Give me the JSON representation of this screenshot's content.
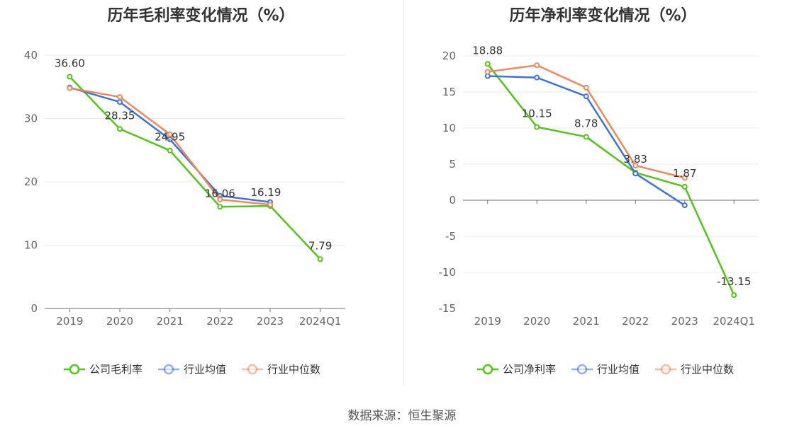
{
  "source": "数据来源：恒生聚源",
  "chart_data": [
    {
      "type": "line",
      "title": "历年毛利率变化情况（%）",
      "categories": [
        "2019",
        "2020",
        "2021",
        "2022",
        "2023",
        "2024Q1"
      ],
      "ylim": [
        0,
        40
      ],
      "yticks": [
        0,
        10,
        20,
        30,
        40
      ],
      "grid": true,
      "legend_position": "bottom",
      "series": [
        {
          "name": "公司毛利率",
          "color": "#52c41a",
          "values": [
            36.6,
            28.35,
            24.95,
            16.06,
            16.19,
            7.79
          ],
          "labels": [
            "36.60",
            "28.35",
            "24.95",
            "16.06",
            "16.19",
            "7.79"
          ]
        },
        {
          "name": "行业均值",
          "color": "#3b73db",
          "values": [
            34.9,
            32.6,
            26.7,
            17.8,
            16.8,
            null
          ]
        },
        {
          "name": "行业中位数",
          "color": "#f0875a",
          "values": [
            34.8,
            33.4,
            27.5,
            17.2,
            16.4,
            null
          ]
        }
      ]
    },
    {
      "type": "line",
      "title": "历年净利率变化情况（%）",
      "categories": [
        "2019",
        "2020",
        "2021",
        "2022",
        "2023",
        "2024Q1"
      ],
      "ylim": [
        -15,
        20
      ],
      "yticks": [
        -15,
        -10,
        -5,
        0,
        5,
        10,
        15,
        20
      ],
      "grid": true,
      "legend_position": "bottom",
      "series": [
        {
          "name": "公司净利率",
          "color": "#52c41a",
          "values": [
            18.88,
            10.15,
            8.78,
            3.83,
            1.87,
            -13.15
          ],
          "labels": [
            "18.88",
            "10.15",
            "8.78",
            "3.83",
            "1.87",
            "-13.15"
          ]
        },
        {
          "name": "行业均值",
          "color": "#3b73db",
          "values": [
            17.2,
            17.0,
            14.4,
            3.7,
            -0.7,
            null
          ]
        },
        {
          "name": "行业中位数",
          "color": "#f0875a",
          "values": [
            17.8,
            18.7,
            15.6,
            4.8,
            3.1,
            null
          ]
        }
      ]
    }
  ]
}
